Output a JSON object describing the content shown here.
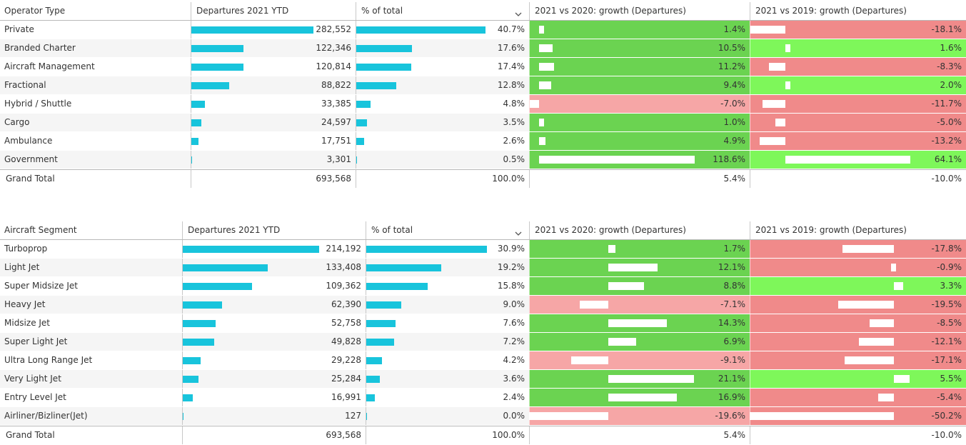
{
  "table1": {
    "headers": {
      "label": "Operator Type",
      "departures": "Departures 2021 YTD",
      "pct": "% of total",
      "g2020": "2021 vs 2020: growth (Departures)",
      "g2019": "2021 vs 2019: growth (Departures)"
    },
    "rows": [
      {
        "label": "Private",
        "departures": "282,552",
        "pct": "40.7%",
        "g2020": "1.4%",
        "g2019": "-18.1%",
        "dep_val": 282552,
        "pct_val": 40.7,
        "g2020_val": 1.4,
        "g2019_val": -18.1
      },
      {
        "label": "Branded Charter",
        "departures": "122,346",
        "pct": "17.6%",
        "g2020": "10.5%",
        "g2019": "1.6%",
        "dep_val": 122346,
        "pct_val": 17.6,
        "g2020_val": 10.5,
        "g2019_val": 1.6
      },
      {
        "label": "Aircraft Management",
        "departures": "120,814",
        "pct": "17.4%",
        "g2020": "11.2%",
        "g2019": "-8.3%",
        "dep_val": 120814,
        "pct_val": 17.4,
        "g2020_val": 11.2,
        "g2019_val": -8.3
      },
      {
        "label": "Fractional",
        "departures": "88,822",
        "pct": "12.8%",
        "g2020": "9.4%",
        "g2019": "2.0%",
        "dep_val": 88822,
        "pct_val": 12.8,
        "g2020_val": 9.4,
        "g2019_val": 2.0
      },
      {
        "label": "Hybrid / Shuttle",
        "departures": "33,385",
        "pct": "4.8%",
        "g2020": "-7.0%",
        "g2019": "-11.7%",
        "dep_val": 33385,
        "pct_val": 4.8,
        "g2020_val": -7.0,
        "g2019_val": -11.7
      },
      {
        "label": "Cargo",
        "departures": "24,597",
        "pct": "3.5%",
        "g2020": "1.0%",
        "g2019": "-5.0%",
        "dep_val": 24597,
        "pct_val": 3.5,
        "g2020_val": 1.0,
        "g2019_val": -5.0
      },
      {
        "label": "Ambulance",
        "departures": "17,751",
        "pct": "2.6%",
        "g2020": "4.9%",
        "g2019": "-13.2%",
        "dep_val": 17751,
        "pct_val": 2.6,
        "g2020_val": 4.9,
        "g2019_val": -13.2
      },
      {
        "label": "Government",
        "departures": "3,301",
        "pct": "0.5%",
        "g2020": "118.6%",
        "g2019": "64.1%",
        "dep_val": 3301,
        "pct_val": 0.5,
        "g2020_val": 118.6,
        "g2019_val": 64.1
      }
    ],
    "total": {
      "label": "Grand Total",
      "departures": "693,568",
      "pct": "100.0%",
      "g2020": "5.4%",
      "g2019": "-10.0%"
    }
  },
  "table2": {
    "headers": {
      "label": "Aircraft Segment",
      "departures": "Departures 2021 YTD",
      "pct": "% of total",
      "g2020": "2021 vs 2020: growth (Departures)",
      "g2019": "2021 vs 2019: growth (Departures)"
    },
    "rows": [
      {
        "label": "Turboprop",
        "departures": "214,192",
        "pct": "30.9%",
        "g2020": "1.7%",
        "g2019": "-17.8%",
        "dep_val": 214192,
        "pct_val": 30.9,
        "g2020_val": 1.7,
        "g2019_val": -17.8
      },
      {
        "label": "Light Jet",
        "departures": "133,408",
        "pct": "19.2%",
        "g2020": "12.1%",
        "g2019": "-0.9%",
        "dep_val": 133408,
        "pct_val": 19.2,
        "g2020_val": 12.1,
        "g2019_val": -0.9
      },
      {
        "label": "Super Midsize Jet",
        "departures": "109,362",
        "pct": "15.8%",
        "g2020": "8.8%",
        "g2019": "3.3%",
        "dep_val": 109362,
        "pct_val": 15.8,
        "g2020_val": 8.8,
        "g2019_val": 3.3
      },
      {
        "label": "Heavy Jet",
        "departures": "62,390",
        "pct": "9.0%",
        "g2020": "-7.1%",
        "g2019": "-19.5%",
        "dep_val": 62390,
        "pct_val": 9.0,
        "g2020_val": -7.1,
        "g2019_val": -19.5
      },
      {
        "label": "Midsize Jet",
        "departures": "52,758",
        "pct": "7.6%",
        "g2020": "14.3%",
        "g2019": "-8.5%",
        "dep_val": 52758,
        "pct_val": 7.6,
        "g2020_val": 14.3,
        "g2019_val": -8.5
      },
      {
        "label": "Super Light Jet",
        "departures": "49,828",
        "pct": "7.2%",
        "g2020": "6.9%",
        "g2019": "-12.1%",
        "dep_val": 49828,
        "pct_val": 7.2,
        "g2020_val": 6.9,
        "g2019_val": -12.1
      },
      {
        "label": "Ultra Long Range Jet",
        "departures": "29,228",
        "pct": "4.2%",
        "g2020": "-9.1%",
        "g2019": "-17.1%",
        "dep_val": 29228,
        "pct_val": 4.2,
        "g2020_val": -9.1,
        "g2019_val": -17.1
      },
      {
        "label": "Very Light Jet",
        "departures": "25,284",
        "pct": "3.6%",
        "g2020": "21.1%",
        "g2019": "5.5%",
        "dep_val": 25284,
        "pct_val": 3.6,
        "g2020_val": 21.1,
        "g2019_val": 5.5
      },
      {
        "label": "Entry Level Jet",
        "departures": "16,991",
        "pct": "2.4%",
        "g2020": "16.9%",
        "g2019": "-5.4%",
        "dep_val": 16991,
        "pct_val": 2.4,
        "g2020_val": 16.9,
        "g2019_val": -5.4
      },
      {
        "label": "Airliner/Bizliner(Jet)",
        "departures": "127",
        "pct": "0.0%",
        "g2020": "-19.6%",
        "g2019": "-50.2%",
        "dep_val": 127,
        "pct_val": 0.0,
        "g2020_val": -19.6,
        "g2019_val": -50.2
      }
    ],
    "total": {
      "label": "Grand Total",
      "departures": "693,568",
      "pct": "100.0%",
      "g2020": "5.4%",
      "g2019": "-10.0%"
    }
  },
  "colors": {
    "bar": "#18c4dc",
    "growth_positive": "#6bd351",
    "growth_positive_bright": "#7ef75a",
    "growth_negative": "#f08a8a",
    "growth_negative_light": "#f6a6a6"
  },
  "icons": {
    "sort": "chevron-down-icon"
  }
}
